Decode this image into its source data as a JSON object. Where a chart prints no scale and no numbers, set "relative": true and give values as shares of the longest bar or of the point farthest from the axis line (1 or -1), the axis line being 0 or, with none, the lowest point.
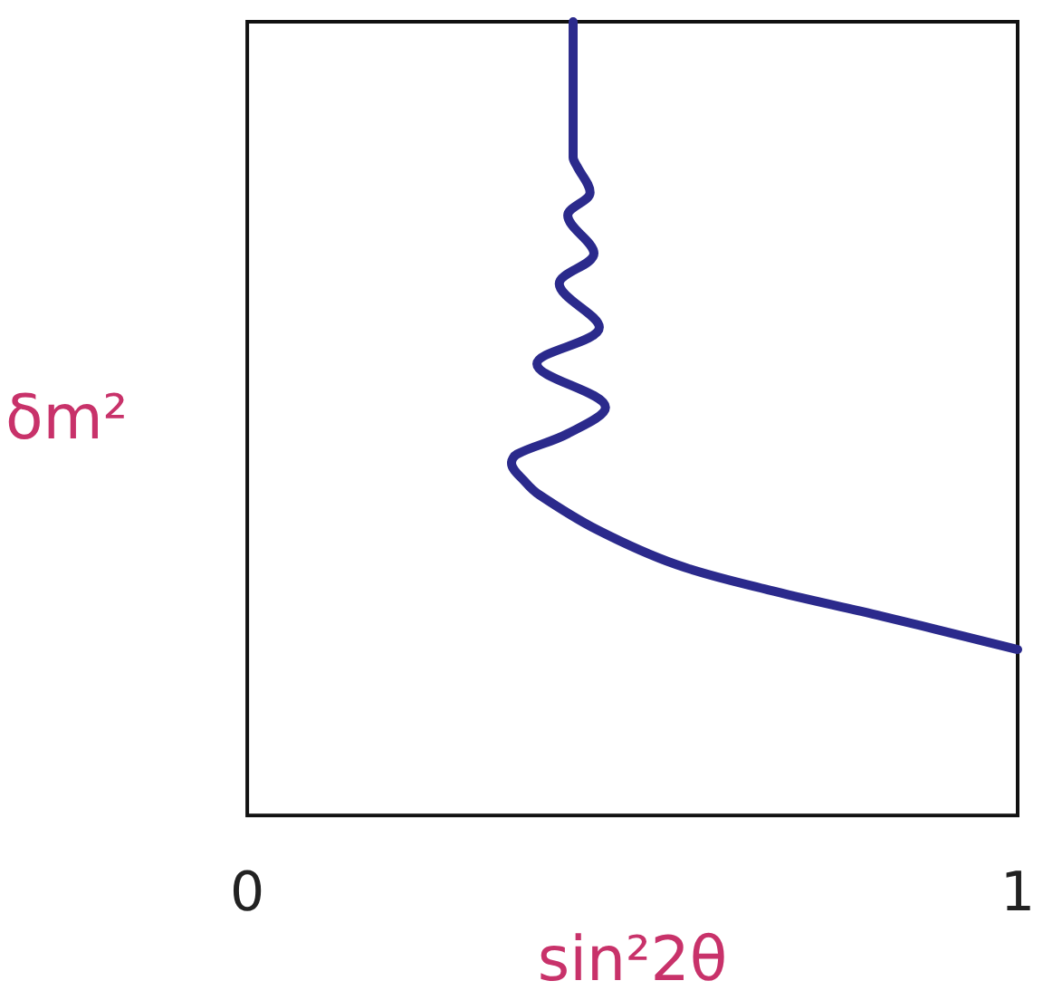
{
  "chart_data": {
    "type": "line",
    "xlabel": "sin²2θ",
    "ylabel": "δm²",
    "relative": true,
    "xlim": [
      0,
      1
    ],
    "xticks": [
      0,
      1
    ],
    "marker": "none",
    "line_style": "solid",
    "series": [
      {
        "color": "#2b2a8c",
        "x": [
          0.423,
          0.423,
          0.428,
          0.445,
          0.416,
          0.45,
          0.405,
          0.457,
          0.376,
          0.465,
          0.416,
          0.35,
          0.343,
          0.361,
          0.379,
          0.454,
          0.557,
          0.677,
          0.824,
          1.0
        ],
        "values": [
          1.0,
          0.829,
          0.818,
          0.785,
          0.756,
          0.708,
          0.67,
          0.615,
          0.569,
          0.514,
          0.481,
          0.455,
          0.444,
          0.42,
          0.404,
          0.36,
          0.316,
          0.284,
          0.251,
          0.209
        ]
      }
    ]
  }
}
